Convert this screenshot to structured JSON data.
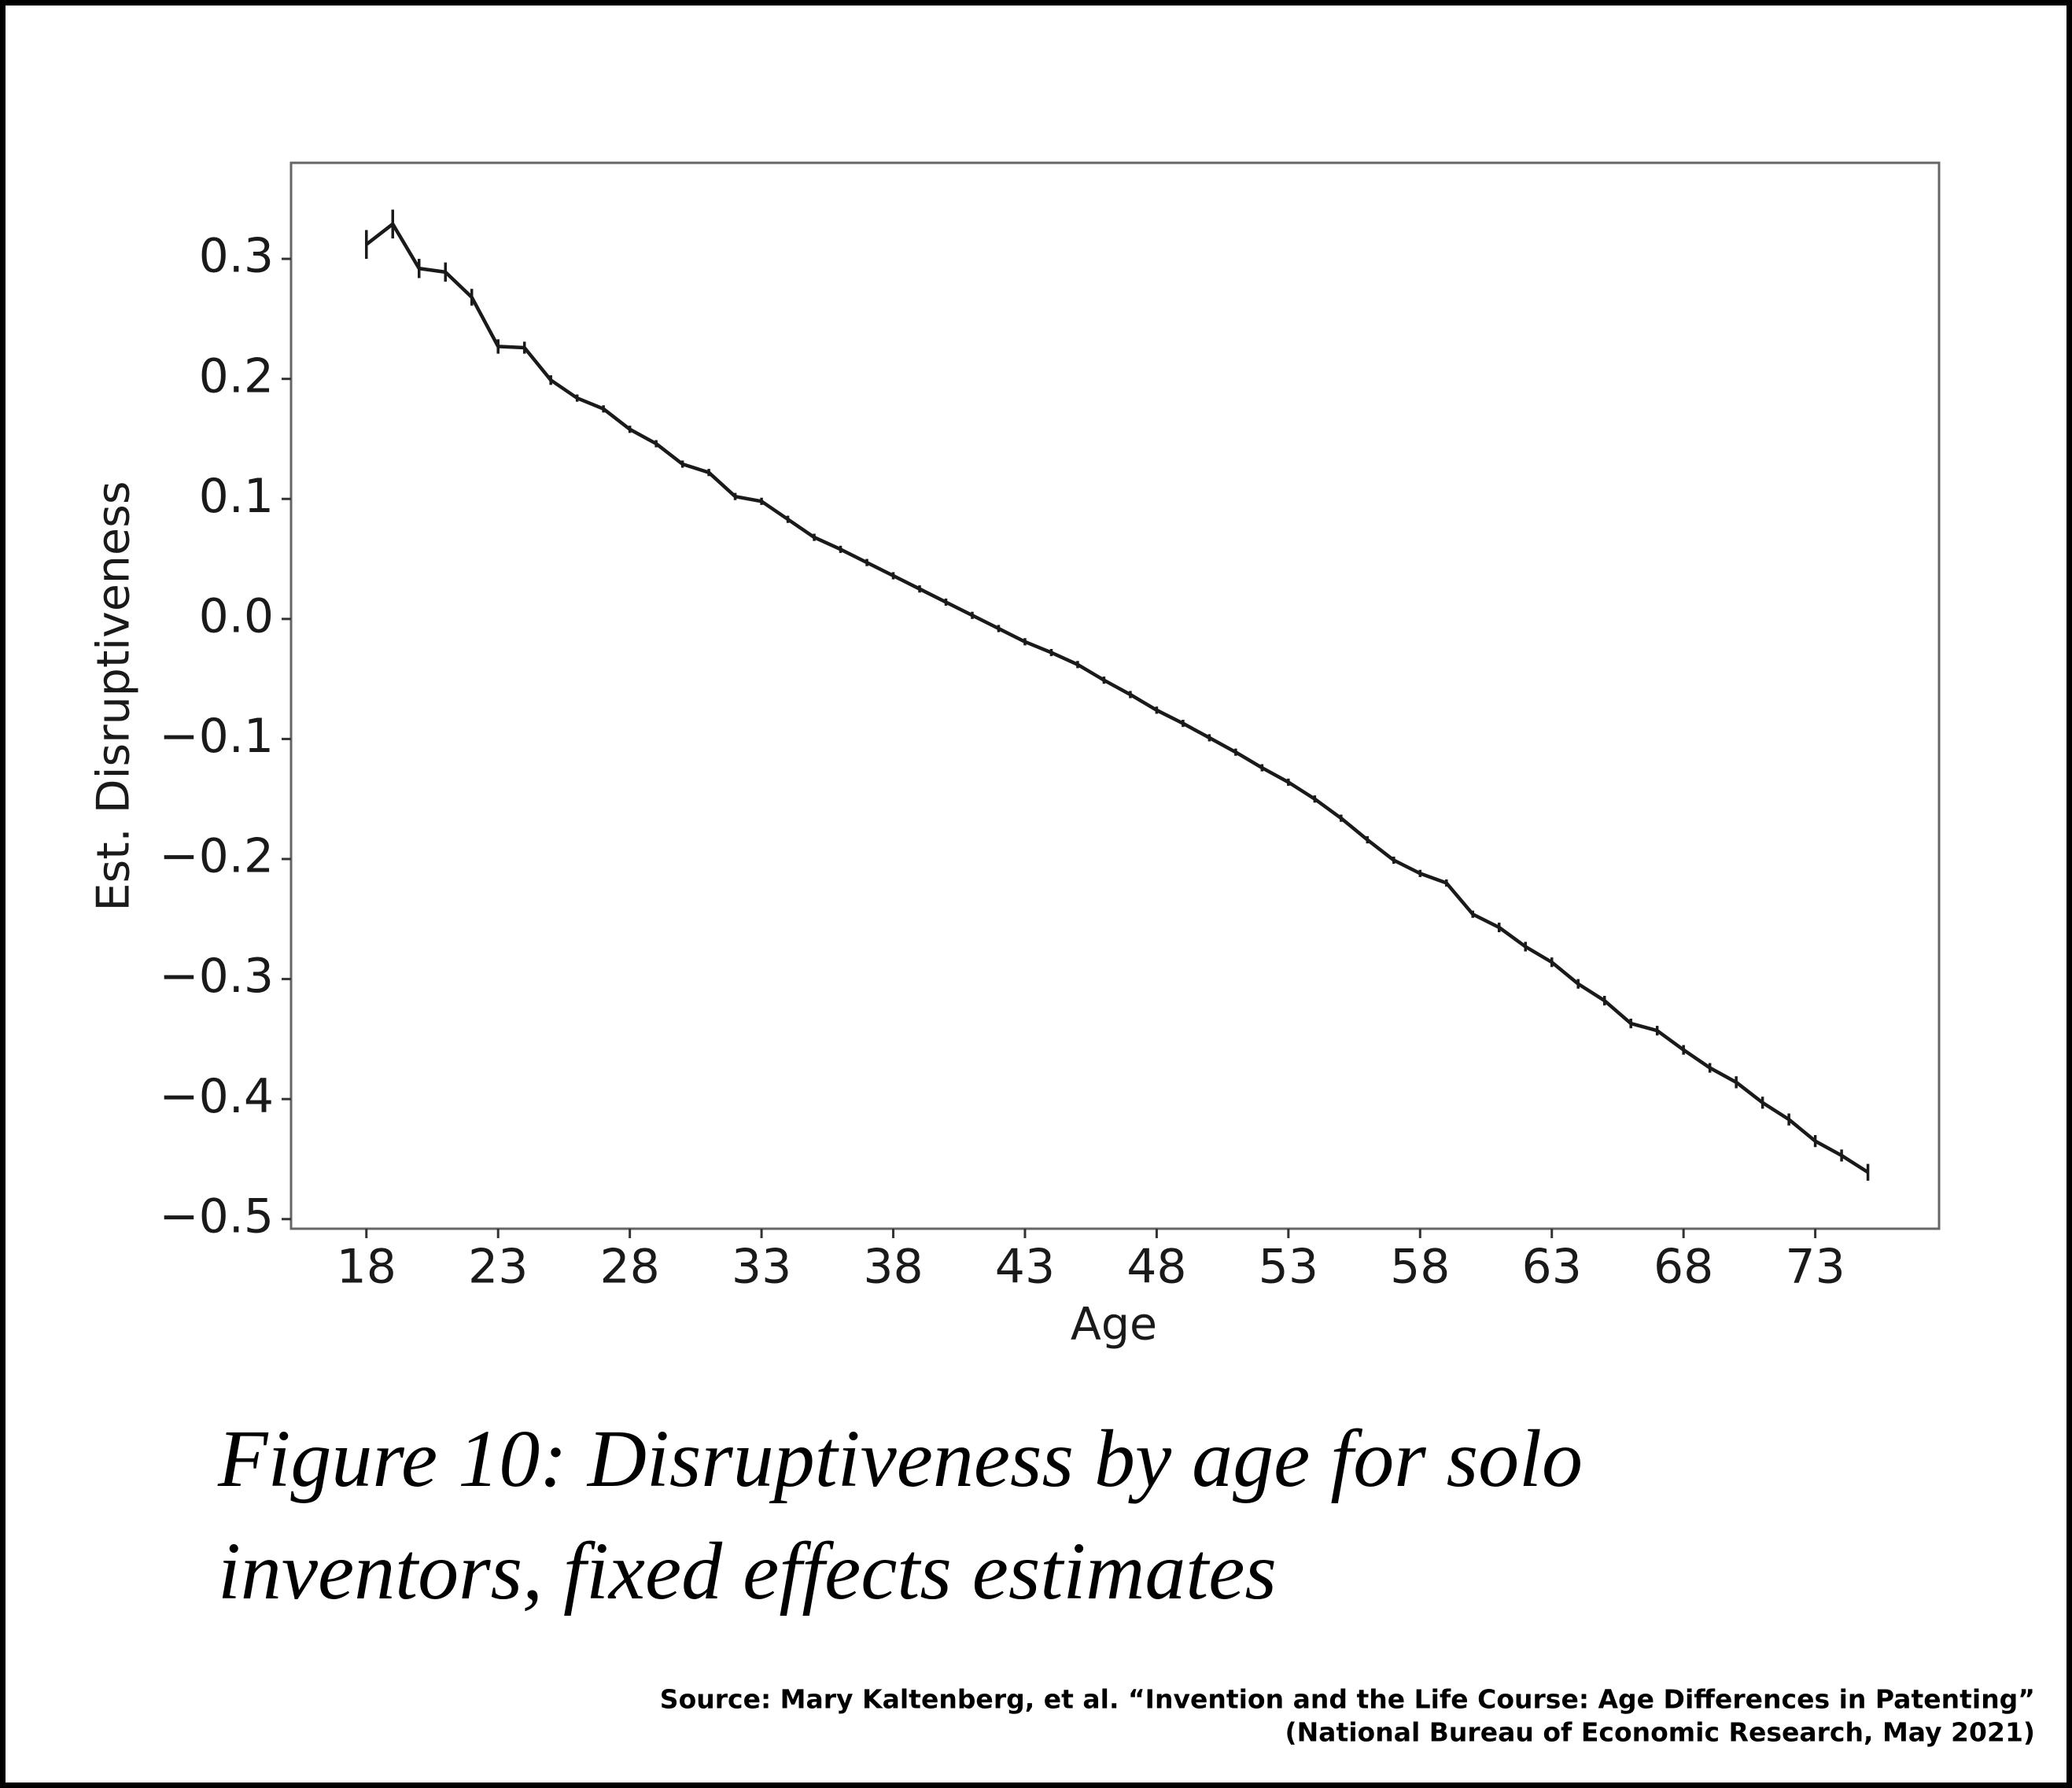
{
  "chart_data": {
    "type": "line",
    "xlabel": "Age",
    "ylabel": "Est. Disruptiveness",
    "x": [
      18,
      19,
      20,
      21,
      22,
      23,
      24,
      25,
      26,
      27,
      28,
      29,
      30,
      31,
      32,
      33,
      34,
      35,
      36,
      37,
      38,
      39,
      40,
      41,
      42,
      43,
      44,
      45,
      46,
      47,
      48,
      49,
      50,
      51,
      52,
      53,
      54,
      55,
      56,
      57,
      58,
      59,
      60,
      61,
      62,
      63,
      64,
      65,
      66,
      67,
      68,
      69,
      70,
      71,
      72,
      73,
      74,
      75
    ],
    "series": [
      {
        "color": "#1a1a1a",
        "values": [
          0.312,
          0.329,
          0.292,
          0.289,
          0.268,
          0.227,
          0.226,
          0.199,
          0.184,
          0.175,
          0.158,
          0.146,
          0.129,
          0.122,
          0.102,
          0.098,
          0.083,
          0.068,
          0.058,
          0.047,
          0.036,
          0.025,
          0.014,
          0.003,
          -0.008,
          -0.019,
          -0.028,
          -0.038,
          -0.051,
          -0.063,
          -0.076,
          -0.087,
          -0.099,
          -0.111,
          -0.124,
          -0.136,
          -0.15,
          -0.166,
          -0.184,
          -0.201,
          -0.212,
          -0.22,
          -0.246,
          -0.257,
          -0.273,
          -0.286,
          -0.304,
          -0.318,
          -0.337,
          -0.343,
          -0.359,
          -0.374,
          -0.386,
          -0.403,
          -0.417,
          -0.435,
          -0.447,
          -0.461
        ],
        "errors": [
          0.012,
          0.012,
          0.008,
          0.008,
          0.007,
          0.006,
          0.005,
          0.004,
          0.003,
          0.003,
          0.003,
          0.003,
          0.003,
          0.003,
          0.003,
          0.003,
          0.003,
          0.003,
          0.003,
          0.003,
          0.003,
          0.003,
          0.003,
          0.003,
          0.003,
          0.003,
          0.003,
          0.003,
          0.003,
          0.003,
          0.003,
          0.003,
          0.003,
          0.003,
          0.003,
          0.003,
          0.003,
          0.003,
          0.003,
          0.003,
          0.003,
          0.003,
          0.003,
          0.004,
          0.004,
          0.004,
          0.004,
          0.004,
          0.004,
          0.004,
          0.004,
          0.004,
          0.005,
          0.005,
          0.005,
          0.005,
          0.005,
          0.007
        ]
      }
    ],
    "xlim": [
      15.14,
      77.7
    ],
    "ylim": [
      -0.508,
      0.38
    ],
    "xticks": [
      18,
      23,
      28,
      33,
      38,
      43,
      48,
      53,
      58,
      63,
      68,
      73
    ],
    "yticks": [
      {
        "value": -0.5,
        "label": "−0.5"
      },
      {
        "value": -0.4,
        "label": "−0.4"
      },
      {
        "value": -0.3,
        "label": "−0.3"
      },
      {
        "value": -0.2,
        "label": "−0.2"
      },
      {
        "value": -0.1,
        "label": "−0.1"
      },
      {
        "value": 0,
        "label": "0.0"
      },
      0.1,
      0.2,
      0.3
    ],
    "grid": false
  },
  "caption": [
    "Figure 10: Disruptiveness by age for solo",
    "inventors, fixed effects estimates"
  ],
  "source": [
    "Source:  Mary Kaltenberg, et al. “Invention and the Life Course: Age Differences in Patenting”",
    "(National Bureau of Economic Research, May 2021)"
  ]
}
